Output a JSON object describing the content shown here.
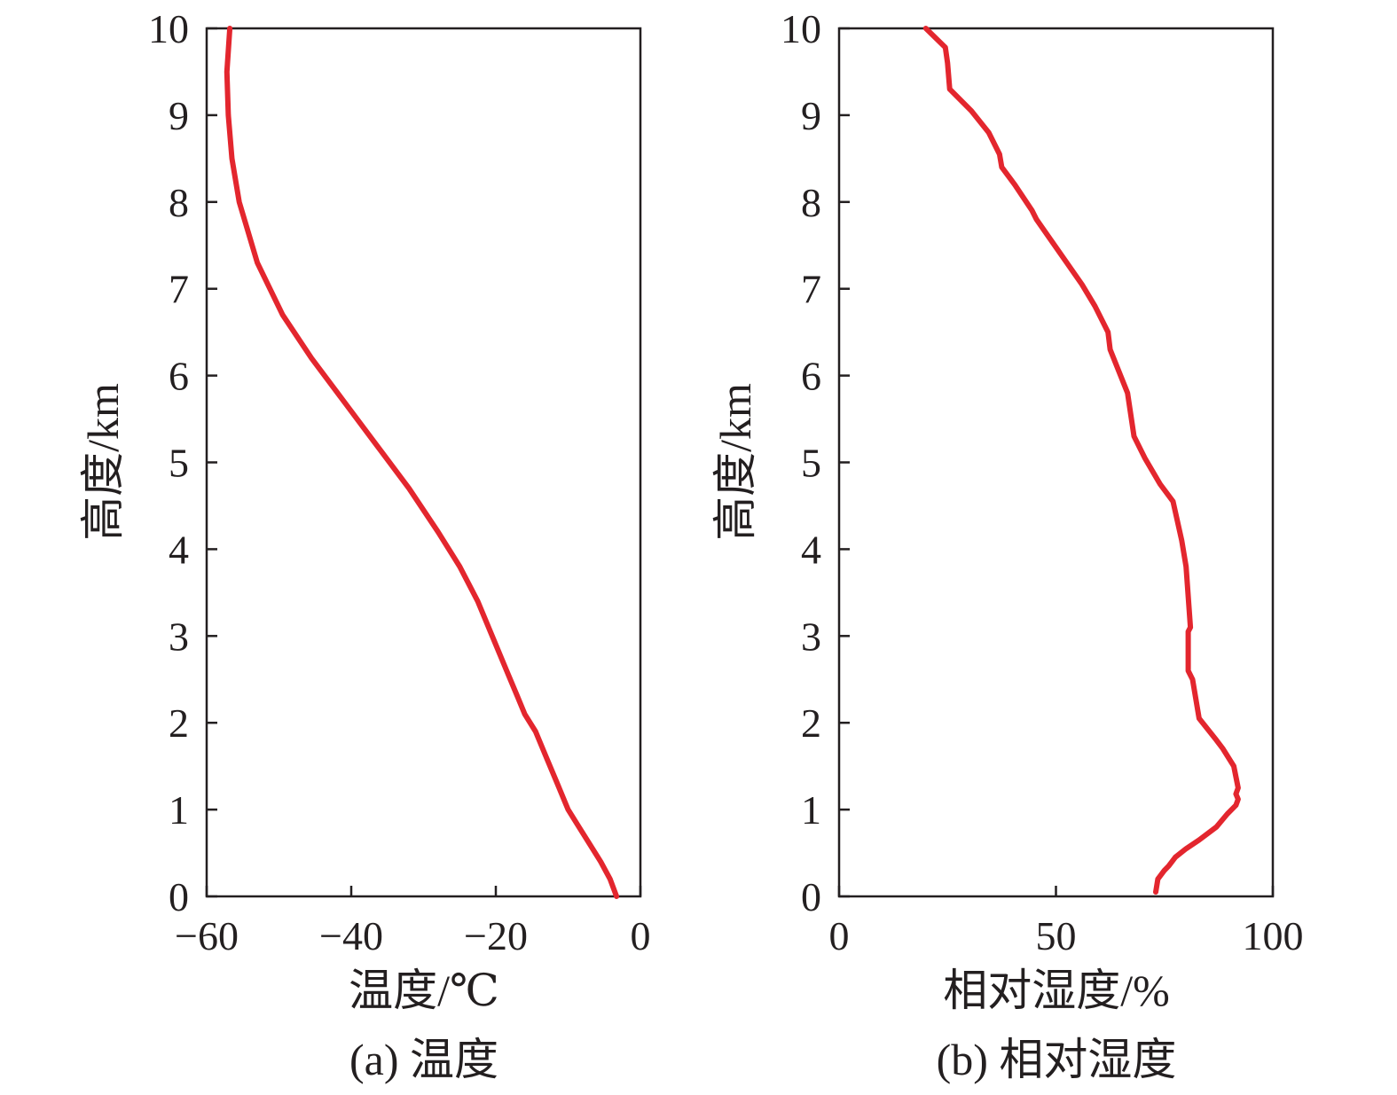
{
  "line_color": "#e3262e",
  "axis_color": "#231f20",
  "chart_data": [
    {
      "type": "line",
      "title": "",
      "caption": "(a) 温度",
      "xlabel": "温度/℃",
      "ylabel": "高度/km",
      "xlim": [
        -60,
        0
      ],
      "ylim": [
        0,
        10
      ],
      "xticks": [
        -60,
        -40,
        -20,
        0
      ],
      "xtick_labels": [
        "−60",
        "−40",
        "−20",
        "0"
      ],
      "yticks": [
        0,
        1,
        2,
        3,
        4,
        5,
        6,
        7,
        8,
        9,
        10
      ],
      "ytick_labels": [
        "0",
        "1",
        "2",
        "3",
        "4",
        "5",
        "6",
        "7",
        "8",
        "9",
        "10"
      ],
      "series": [
        {
          "name": "温度",
          "x": [
            -3.3,
            -4.2,
            -5.5,
            -7.0,
            -8.5,
            -10.0,
            -11.5,
            -13.0,
            -14.5,
            -16.0,
            -17.0,
            -18.5,
            -20.5,
            -22.5,
            -25.0,
            -28.0,
            -32.0,
            -36.5,
            -41.0,
            -45.5,
            -49.5,
            -53.0,
            -55.5,
            -56.5,
            -57.0,
            -57.2,
            -56.8
          ],
          "y": [
            0.0,
            0.2,
            0.4,
            0.6,
            0.8,
            1.0,
            1.3,
            1.6,
            1.9,
            2.1,
            2.3,
            2.6,
            3.0,
            3.4,
            3.8,
            4.2,
            4.7,
            5.2,
            5.7,
            6.2,
            6.7,
            7.3,
            8.0,
            8.5,
            9.0,
            9.5,
            10.0
          ]
        }
      ]
    },
    {
      "type": "line",
      "title": "",
      "caption": "(b) 相对湿度",
      "xlabel": "相对湿度/%",
      "ylabel": "高度/km",
      "xlim": [
        0,
        100
      ],
      "ylim": [
        0,
        10
      ],
      "xticks": [
        0,
        50,
        100
      ],
      "xtick_labels": [
        "0",
        "50",
        "100"
      ],
      "yticks": [
        0,
        1,
        2,
        3,
        4,
        5,
        6,
        7,
        8,
        9,
        10
      ],
      "ytick_labels": [
        "0",
        "1",
        "2",
        "3",
        "4",
        "5",
        "6",
        "7",
        "8",
        "9",
        "10"
      ],
      "series": [
        {
          "name": "相对湿度",
          "x": [
            73.0,
            73.5,
            75.0,
            76.0,
            77.5,
            80.0,
            83.0,
            87.0,
            89.5,
            91.5,
            92.0,
            91.5,
            92.0,
            91.0,
            88.5,
            87.0,
            83.0,
            81.5,
            80.5,
            80.5,
            81.0,
            80.0,
            79.0,
            77.0,
            74.0,
            70.5,
            68.0,
            66.5,
            62.5,
            62.0,
            59.0,
            56.0,
            52.5,
            49.0,
            45.5,
            44.5,
            40.5,
            37.5,
            37.0,
            34.5,
            30.5,
            25.5,
            25.0,
            24.5,
            20.0
          ],
          "y": [
            0.05,
            0.2,
            0.3,
            0.35,
            0.45,
            0.55,
            0.65,
            0.8,
            0.95,
            1.05,
            1.12,
            1.18,
            1.25,
            1.5,
            1.7,
            1.8,
            2.05,
            2.5,
            2.6,
            3.05,
            3.1,
            3.8,
            4.1,
            4.55,
            4.75,
            5.05,
            5.3,
            5.8,
            6.3,
            6.5,
            6.8,
            7.05,
            7.3,
            7.55,
            7.8,
            7.9,
            8.2,
            8.4,
            8.55,
            8.8,
            9.05,
            9.3,
            9.6,
            9.78,
            10.0
          ]
        }
      ]
    }
  ]
}
